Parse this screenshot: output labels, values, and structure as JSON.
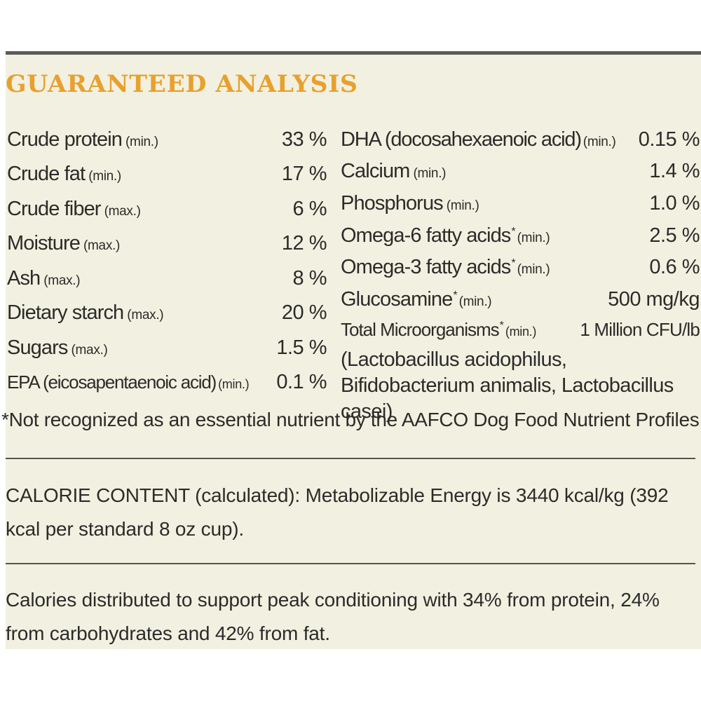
{
  "heading": "GUARANTEED ANALYSIS",
  "left_rows": [
    {
      "label": "Crude protein",
      "qualifier": "(min.)",
      "value": "33 %"
    },
    {
      "label": "Crude fat",
      "qualifier": "(min.)",
      "value": "17 %"
    },
    {
      "label": "Crude fiber",
      "qualifier": "(max.)",
      "value": "6 %"
    },
    {
      "label": "Moisture",
      "qualifier": "(max.)",
      "value": "12 %"
    },
    {
      "label": "Ash",
      "qualifier": "(max.)",
      "value": "8 %"
    },
    {
      "label": "Dietary starch",
      "qualifier": "(max.)",
      "value": "20 %"
    },
    {
      "label": "Sugars",
      "qualifier": "(max.)",
      "value": "1.5 %"
    },
    {
      "label": "EPA (eicosapentaenoic acid)",
      "qualifier": "(min.)",
      "value": "0.1 %"
    }
  ],
  "right_rows": [
    {
      "label": "DHA (docosahexaenoic acid)",
      "qualifier": "(min.)",
      "value": "0.15 %"
    },
    {
      "label": "Calcium",
      "qualifier": "(min.)",
      "value": "1.4 %"
    },
    {
      "label": "Phosphorus",
      "qualifier": "(min.)",
      "value": "1.0 %"
    },
    {
      "label": "Omega-6 fatty acids",
      "star": "*",
      "qualifier": "(min.)",
      "value": "2.5 %"
    },
    {
      "label": "Omega-3 fatty acids",
      "star": "*",
      "qualifier": "(min.)",
      "value": "0.6 %"
    },
    {
      "label": "Glucosamine",
      "star": "*",
      "qualifier": "(min.)",
      "value": "500 mg/kg"
    },
    {
      "label": "Total Microorganisms",
      "star": "*",
      "qualifier": "(min.)",
      "value": "1 Million CFU/lb"
    }
  ],
  "microorganisms_list": "(Lactobacillus acidophilus, Bifidobacterium animalis, Lactobacillus casei)",
  "footnote": "*Not recognized as an essential nutrient by the AAFCO Dog Food Nutrient Profiles",
  "calorie_content": "CALORIE CONTENT (calculated): Metabolizable Energy is 3440 kcal/kg (392 kcal per standard 8 oz cup).",
  "calories_distribution": "Calories distributed to support peak conditioning with 34% from protein, 24% from carbohydrates and 42% from fat.",
  "colors": {
    "heading": "#e8a02e",
    "background": "#f2f1e1",
    "text": "#2b2b2b",
    "rule": "#55544f"
  }
}
